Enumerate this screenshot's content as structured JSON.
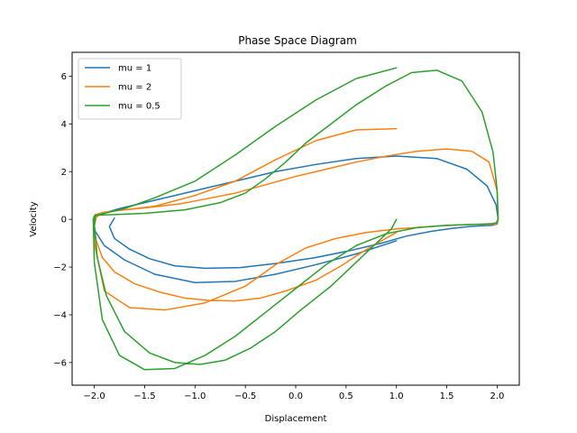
{
  "chart_data": {
    "type": "line",
    "title": "Phase Space Diagram",
    "xlabel": "Displacement",
    "ylabel": "Velocity",
    "xlim": [
      -2.22,
      2.22
    ],
    "ylim": [
      -6.95,
      7.0
    ],
    "xticks": [
      -2.0,
      -1.5,
      -1.0,
      -0.5,
      0.0,
      0.5,
      1.0,
      1.5,
      2.0
    ],
    "xtick_labels": [
      "−2.0",
      "−1.5",
      "−1.0",
      "−0.5",
      "0.0",
      "0.5",
      "1.0",
      "1.5",
      "2.0"
    ],
    "yticks": [
      -6,
      -4,
      -2,
      0,
      2,
      4,
      6
    ],
    "ytick_labels": [
      "−6",
      "−4",
      "−2",
      "0",
      "2",
      "4",
      "6"
    ],
    "grid": false,
    "legend_position": "top-left",
    "series": [
      {
        "name": "mu = 1",
        "color": "#1f77b4",
        "x": [
          -1.8,
          -1.85,
          -1.8,
          -1.65,
          -1.45,
          -1.2,
          -0.9,
          -0.55,
          -0.2,
          0.2,
          0.55,
          0.85,
          1.1,
          1.35,
          1.55,
          1.72,
          1.85,
          1.95,
          2.0,
          2.01,
          1.99,
          1.9,
          1.7,
          1.4,
          1.0,
          0.6,
          0.2,
          -0.2,
          -0.6,
          -0.9,
          -1.2,
          -1.5,
          -1.75,
          -1.92,
          -2.0,
          -2.01,
          -1.99,
          -1.9,
          -1.7,
          -1.4,
          -1.0,
          -0.6,
          -0.2,
          0.2,
          0.6,
          1.0
        ],
        "y": [
          0.05,
          -0.3,
          -0.8,
          -1.25,
          -1.65,
          -1.95,
          -2.05,
          -2.02,
          -1.85,
          -1.6,
          -1.3,
          -1.0,
          -0.7,
          -0.5,
          -0.38,
          -0.3,
          -0.27,
          -0.25,
          -0.2,
          0.0,
          0.6,
          1.4,
          2.1,
          2.55,
          2.65,
          2.55,
          2.3,
          2.0,
          1.6,
          1.3,
          1.0,
          0.7,
          0.45,
          0.25,
          0.1,
          0.0,
          -0.5,
          -1.1,
          -1.7,
          -2.3,
          -2.65,
          -2.6,
          -2.3,
          -1.9,
          -1.45,
          -0.9
        ]
      },
      {
        "name": "mu = 2",
        "color": "#ff7f0e",
        "x": [
          1.0,
          0.85,
          0.65,
          0.45,
          0.2,
          -0.1,
          -0.35,
          -0.6,
          -0.85,
          -1.1,
          -1.35,
          -1.6,
          -1.8,
          -1.92,
          -1.98,
          -2.0,
          -1.98,
          -1.9,
          -1.7,
          -1.45,
          -1.15,
          -0.9,
          -0.6,
          -0.3,
          0.0,
          0.3,
          0.6,
          0.9,
          1.2,
          1.5,
          1.75,
          1.92,
          2.0,
          2.01,
          1.99,
          1.9,
          1.7,
          1.4,
          1.0,
          0.7,
          0.4,
          0.1,
          -0.2,
          -0.5,
          -0.9,
          -1.3,
          -1.65,
          -1.9,
          -2.0,
          -2.01,
          -1.99,
          -1.9,
          -1.7,
          -1.4,
          -1.0,
          -0.6,
          -0.2,
          0.2,
          0.6,
          1.0
        ],
        "y": [
          -0.55,
          -0.9,
          -1.4,
          -1.95,
          -2.55,
          -3.0,
          -3.3,
          -3.42,
          -3.4,
          -3.3,
          -3.05,
          -2.7,
          -2.2,
          -1.6,
          -0.9,
          -0.3,
          0.1,
          0.3,
          0.4,
          0.5,
          0.65,
          0.85,
          1.1,
          1.45,
          1.8,
          2.1,
          2.4,
          2.65,
          2.85,
          2.95,
          2.85,
          2.4,
          1.2,
          0.0,
          -0.2,
          -0.2,
          -0.22,
          -0.28,
          -0.4,
          -0.55,
          -0.8,
          -1.2,
          -1.9,
          -2.8,
          -3.5,
          -3.8,
          -3.7,
          -3.0,
          -1.0,
          0.0,
          0.2,
          0.3,
          0.4,
          0.55,
          1.0,
          1.6,
          2.5,
          3.3,
          3.75,
          3.8
        ]
      },
      {
        "name": "mu = 0.5",
        "color": "#2ca02c",
        "x": [
          1.0,
          0.95,
          0.8,
          0.6,
          0.35,
          0.05,
          -0.2,
          -0.45,
          -0.7,
          -0.95,
          -1.2,
          -1.45,
          -1.7,
          -1.88,
          -1.97,
          -2.0,
          -1.99,
          -1.95,
          -1.8,
          -1.5,
          -1.1,
          -0.75,
          -0.5,
          -0.3,
          -0.1,
          0.1,
          0.35,
          0.6,
          0.9,
          1.15,
          1.4,
          1.65,
          1.85,
          1.96,
          2.0,
          2.01,
          1.99,
          1.95,
          1.85,
          1.7,
          1.5,
          1.2,
          0.9,
          0.6,
          0.3,
          0.0,
          -0.3,
          -0.6,
          -0.9,
          -1.2,
          -1.5,
          -1.75,
          -1.92,
          -2.0,
          -2.01,
          -2.0,
          -1.9,
          -1.7,
          -1.4,
          -1.0,
          -0.6,
          -0.2,
          0.2,
          0.6,
          1.0
        ],
        "y": [
          0.0,
          -0.4,
          -1.0,
          -1.8,
          -2.8,
          -3.8,
          -4.7,
          -5.4,
          -5.9,
          -6.08,
          -6.0,
          -5.6,
          -4.7,
          -3.2,
          -1.6,
          -0.3,
          0.15,
          0.18,
          0.2,
          0.25,
          0.4,
          0.7,
          1.1,
          1.7,
          2.4,
          3.2,
          4.0,
          4.8,
          5.6,
          6.15,
          6.25,
          5.8,
          4.5,
          2.8,
          1.2,
          0.0,
          -0.15,
          -0.18,
          -0.2,
          -0.22,
          -0.25,
          -0.35,
          -0.6,
          -1.1,
          -1.9,
          -2.9,
          -3.9,
          -4.9,
          -5.7,
          -6.25,
          -6.3,
          -5.7,
          -4.2,
          -1.8,
          0.0,
          0.15,
          0.25,
          0.45,
          0.9,
          1.6,
          2.7,
          3.9,
          5.0,
          5.9,
          6.35
        ]
      }
    ]
  }
}
